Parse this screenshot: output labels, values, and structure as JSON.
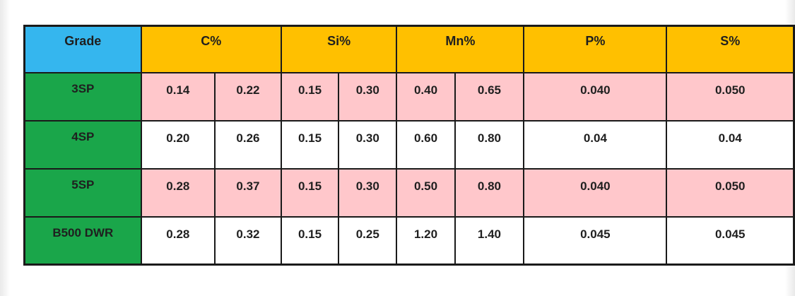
{
  "table": {
    "headers": {
      "grade": "Grade",
      "c": "C%",
      "si": "Si%",
      "mn": "Mn%",
      "p": "P%",
      "s": "S%"
    },
    "rows": [
      {
        "grade": "3SP",
        "c_min": "0.14",
        "c_max": "0.22",
        "si_min": "0.15",
        "si_max": "0.30",
        "mn_min": "0.40",
        "mn_max": "0.65",
        "p": "0.040",
        "s": "0.050"
      },
      {
        "grade": "4SP",
        "c_min": "0.20",
        "c_max": "0.26",
        "si_min": "0.15",
        "si_max": "0.30",
        "mn_min": "0.60",
        "mn_max": "0.80",
        "p": "0.04",
        "s": "0.04"
      },
      {
        "grade": "5SP",
        "c_min": "0.28",
        "c_max": "0.37",
        "si_min": "0.15",
        "si_max": "0.30",
        "mn_min": "0.50",
        "mn_max": "0.80",
        "p": "0.040",
        "s": "0.050"
      },
      {
        "grade": "B500 DWR",
        "c_min": "0.28",
        "c_max": "0.32",
        "si_min": "0.15",
        "si_max": "0.25",
        "mn_min": "1.20",
        "mn_max": "1.40",
        "p": "0.045",
        "s": "0.045"
      }
    ]
  },
  "colors": {
    "grade_header": "#35b6ee",
    "header": "#ffc000",
    "grade_cell": "#1aa64a",
    "pink_row": "#ffc7cb",
    "white_row": "#ffffff",
    "border": "#1a1a1a"
  }
}
